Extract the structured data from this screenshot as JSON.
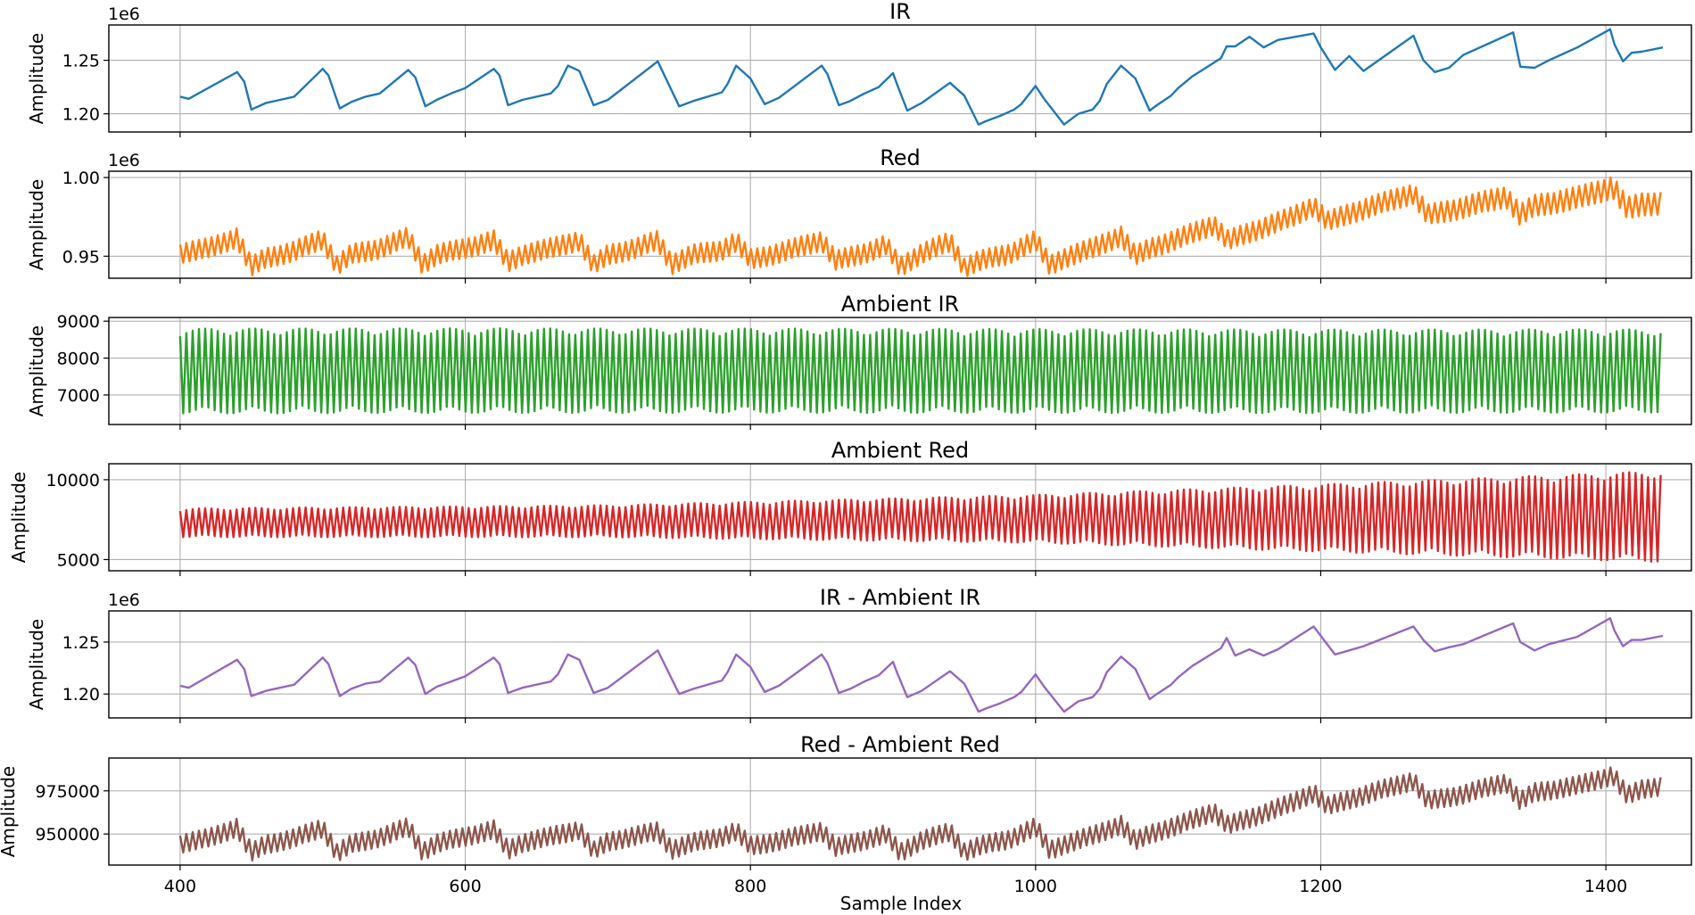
{
  "figure": {
    "xlabel": "Sample Index",
    "xticks": [
      400,
      600,
      800,
      1000,
      1200,
      1400
    ],
    "xlim": [
      350,
      1460
    ]
  },
  "chart_data": [
    {
      "type": "line",
      "title": "IR",
      "ylabel": "Amplitude",
      "offset_label": "1e6",
      "ylim": [
        1.183,
        1.283
      ],
      "yticks": [
        1.2,
        1.25
      ],
      "ytick_labels": [
        "1.20",
        "1.25"
      ],
      "color": "#1f77b4",
      "series": [
        {
          "x": [
            400,
            406,
            440,
            445,
            450,
            460,
            470,
            480,
            500,
            504,
            512,
            520,
            530,
            540,
            560,
            565,
            572,
            580,
            590,
            600,
            620,
            624,
            630,
            640,
            660,
            665,
            672,
            680,
            690,
            700,
            735,
            740,
            750,
            760,
            780,
            784,
            790,
            800,
            810,
            820,
            850,
            854,
            862,
            870,
            880,
            890,
            900,
            903,
            910,
            920,
            940,
            950,
            960,
            965,
            975,
            985,
            990,
            1000,
            1006,
            1020,
            1030,
            1040,
            1045,
            1050,
            1060,
            1070,
            1080,
            1085,
            1095,
            1100,
            1110,
            1130,
            1134,
            1140,
            1150,
            1160,
            1170,
            1195,
            1200,
            1210,
            1220,
            1230,
            1265,
            1272,
            1280,
            1290,
            1300,
            1335,
            1340,
            1350,
            1360,
            1380,
            1403,
            1406,
            1412,
            1418,
            1425,
            1440
          ],
          "values": [
            1.216,
            1.214,
            1.239,
            1.23,
            1.204,
            1.21,
            1.213,
            1.216,
            1.242,
            1.236,
            1.205,
            1.211,
            1.216,
            1.219,
            1.241,
            1.234,
            1.207,
            1.213,
            1.219,
            1.224,
            1.242,
            1.236,
            1.208,
            1.213,
            1.219,
            1.226,
            1.245,
            1.24,
            1.208,
            1.213,
            1.249,
            1.235,
            1.207,
            1.212,
            1.22,
            1.228,
            1.245,
            1.233,
            1.209,
            1.215,
            1.245,
            1.237,
            1.208,
            1.212,
            1.219,
            1.225,
            1.238,
            1.227,
            1.203,
            1.21,
            1.229,
            1.217,
            1.19,
            1.193,
            1.198,
            1.204,
            1.209,
            1.226,
            1.214,
            1.19,
            1.2,
            1.204,
            1.212,
            1.228,
            1.245,
            1.233,
            1.203,
            1.208,
            1.217,
            1.224,
            1.235,
            1.252,
            1.263,
            1.263,
            1.272,
            1.262,
            1.269,
            1.275,
            1.262,
            1.241,
            1.254,
            1.24,
            1.273,
            1.25,
            1.239,
            1.243,
            1.255,
            1.276,
            1.244,
            1.243,
            1.25,
            1.262,
            1.279,
            1.265,
            1.249,
            1.257,
            1.258,
            1.262
          ]
        }
      ]
    },
    {
      "type": "line",
      "title": "Red",
      "ylabel": "Amplitude",
      "offset_label": "1e6",
      "ylim": [
        0.936,
        1.004
      ],
      "yticks": [
        0.95,
        1.0
      ],
      "ytick_labels": [
        "0.95",
        "1.00"
      ],
      "color": "#ff7f0e",
      "series": [
        {
          "x": [
            400,
            420,
            440,
            450,
            460,
            480,
            500,
            510,
            520,
            540,
            560,
            570,
            580,
            600,
            620,
            630,
            640,
            660,
            680,
            690,
            700,
            720,
            735,
            745,
            760,
            780,
            790,
            800,
            820,
            850,
            860,
            880,
            895,
            905,
            920,
            940,
            950,
            960,
            980,
            1000,
            1010,
            1020,
            1040,
            1060,
            1070,
            1080,
            1100,
            1125,
            1135,
            1150,
            1180,
            1195,
            1205,
            1220,
            1265,
            1275,
            1300,
            1330,
            1340,
            1350,
            1380,
            1405,
            1415,
            1425,
            1440
          ],
          "values": [
            0.952,
            0.955,
            0.962,
            0.943,
            0.949,
            0.953,
            0.961,
            0.944,
            0.951,
            0.955,
            0.962,
            0.945,
            0.951,
            0.955,
            0.96,
            0.946,
            0.951,
            0.955,
            0.96,
            0.944,
            0.951,
            0.955,
            0.96,
            0.945,
            0.951,
            0.954,
            0.959,
            0.948,
            0.952,
            0.96,
            0.947,
            0.952,
            0.957,
            0.943,
            0.952,
            0.959,
            0.943,
            0.947,
            0.951,
            0.96,
            0.944,
            0.949,
            0.955,
            0.963,
            0.95,
            0.955,
            0.961,
            0.97,
            0.96,
            0.965,
            0.975,
            0.982,
            0.972,
            0.977,
            0.99,
            0.976,
            0.981,
            0.988,
            0.976,
            0.982,
            0.987,
            0.994,
            0.98,
            0.983,
            0.984
          ]
        }
      ],
      "band": {
        "x": [
          400,
          1200,
          1440
        ],
        "width": [
          0.013,
          0.013,
          0.015
        ]
      }
    },
    {
      "type": "line",
      "title": "Ambient IR",
      "ylabel": "Amplitude",
      "offset_label": "",
      "ylim": [
        6200,
        9100
      ],
      "yticks": [
        7000,
        8000,
        9000
      ],
      "ytick_labels": [
        "7000",
        "8000",
        "9000"
      ],
      "color": "#2ca02c",
      "series": [
        {
          "x": [
            400,
            600,
            800,
            1000,
            1200,
            1440
          ],
          "values": [
            7650,
            7660,
            7660,
            7650,
            7640,
            7650
          ]
        }
      ],
      "band": {
        "x": [
          400,
          1440
        ],
        "width": [
          2300,
          2250
        ]
      }
    },
    {
      "type": "line",
      "title": "Ambient Red",
      "ylabel": "Amplitude",
      "offset_label": "",
      "ylim": [
        4300,
        11000
      ],
      "yticks": [
        5000,
        10000
      ],
      "ytick_labels": [
        "5000",
        "10000"
      ],
      "color": "#d62728",
      "series": [
        {
          "x": [
            400,
            700,
            1000,
            1200,
            1440
          ],
          "values": [
            7300,
            7400,
            7550,
            7600,
            7700
          ]
        }
      ],
      "band": {
        "x": [
          400,
          700,
          1000,
          1200,
          1440
        ],
        "width": [
          1800,
          2000,
          3000,
          4200,
          5700
        ]
      }
    },
    {
      "type": "line",
      "title": "IR - Ambient IR",
      "ylabel": "Amplitude",
      "offset_label": "1e6",
      "ylim": [
        1.177,
        1.28
      ],
      "yticks": [
        1.2,
        1.25
      ],
      "ytick_labels": [
        "1.20",
        "1.25"
      ],
      "color": "#9467bd",
      "series": [
        {
          "x": [
            400,
            406,
            440,
            445,
            450,
            460,
            470,
            480,
            500,
            504,
            512,
            520,
            530,
            540,
            560,
            565,
            572,
            580,
            590,
            600,
            620,
            624,
            630,
            640,
            660,
            665,
            672,
            680,
            690,
            700,
            735,
            740,
            750,
            760,
            780,
            784,
            790,
            800,
            810,
            820,
            850,
            854,
            862,
            870,
            880,
            890,
            900,
            903,
            910,
            920,
            940,
            950,
            960,
            965,
            975,
            985,
            990,
            1000,
            1006,
            1020,
            1030,
            1040,
            1045,
            1050,
            1060,
            1070,
            1080,
            1085,
            1095,
            1100,
            1110,
            1130,
            1134,
            1140,
            1150,
            1160,
            1170,
            1195,
            1200,
            1210,
            1220,
            1230,
            1265,
            1272,
            1280,
            1290,
            1300,
            1335,
            1340,
            1350,
            1360,
            1380,
            1403,
            1406,
            1412,
            1418,
            1425,
            1440
          ],
          "values": [
            1.208,
            1.206,
            1.233,
            1.224,
            1.198,
            1.203,
            1.206,
            1.209,
            1.235,
            1.229,
            1.198,
            1.205,
            1.21,
            1.212,
            1.235,
            1.228,
            1.2,
            1.207,
            1.212,
            1.217,
            1.235,
            1.229,
            1.201,
            1.206,
            1.212,
            1.219,
            1.238,
            1.233,
            1.201,
            1.206,
            1.242,
            1.228,
            1.2,
            1.205,
            1.213,
            1.221,
            1.238,
            1.226,
            1.202,
            1.208,
            1.238,
            1.23,
            1.201,
            1.205,
            1.212,
            1.218,
            1.231,
            1.22,
            1.197,
            1.203,
            1.222,
            1.21,
            1.183,
            1.186,
            1.191,
            1.197,
            1.202,
            1.219,
            1.207,
            1.183,
            1.193,
            1.197,
            1.205,
            1.221,
            1.236,
            1.224,
            1.195,
            1.2,
            1.209,
            1.216,
            1.227,
            1.244,
            1.254,
            1.237,
            1.243,
            1.237,
            1.243,
            1.265,
            1.256,
            1.238,
            1.242,
            1.246,
            1.265,
            1.252,
            1.241,
            1.245,
            1.248,
            1.268,
            1.25,
            1.242,
            1.248,
            1.255,
            1.273,
            1.261,
            1.246,
            1.252,
            1.252,
            1.256
          ]
        }
      ]
    },
    {
      "type": "line",
      "title": "Red - Ambient Red",
      "ylabel": "Amplitude",
      "offset_label": "",
      "ylim": [
        932000,
        994000
      ],
      "yticks": [
        950000,
        975000
      ],
      "ytick_labels": [
        "950000",
        "975000"
      ],
      "color": "#8c564b",
      "series": [
        {
          "x": [
            400,
            420,
            440,
            450,
            460,
            480,
            500,
            510,
            520,
            540,
            560,
            570,
            580,
            600,
            620,
            630,
            640,
            660,
            680,
            690,
            700,
            720,
            735,
            745,
            760,
            780,
            790,
            800,
            820,
            850,
            860,
            880,
            895,
            905,
            920,
            940,
            950,
            960,
            980,
            1000,
            1010,
            1020,
            1040,
            1060,
            1070,
            1080,
            1100,
            1125,
            1135,
            1150,
            1180,
            1195,
            1205,
            1220,
            1265,
            1275,
            1300,
            1330,
            1340,
            1350,
            1380,
            1405,
            1415,
            1425,
            1440
          ],
          "values": [
            944500,
            947500,
            954000,
            939000,
            944000,
            947500,
            953500,
            939000,
            944000,
            948000,
            954000,
            940000,
            944500,
            948500,
            952500,
            940500,
            945000,
            948500,
            952500,
            940000,
            945500,
            949000,
            951500,
            941000,
            945000,
            948500,
            951500,
            943000,
            946000,
            952000,
            942000,
            946500,
            950000,
            939000,
            946500,
            951000,
            940000,
            943000,
            946500,
            954000,
            940500,
            944000,
            949000,
            955500,
            945500,
            950000,
            955000,
            963000,
            955000,
            959000,
            968000,
            974000,
            966000,
            970000,
            981000,
            969000,
            973000,
            980000,
            969000,
            974000,
            978000,
            984000,
            972000,
            976000,
            978000
          ]
        }
      ],
      "band": {
        "x": [
          400,
          1440
        ],
        "width": [
          11000,
          11000
        ]
      }
    }
  ]
}
